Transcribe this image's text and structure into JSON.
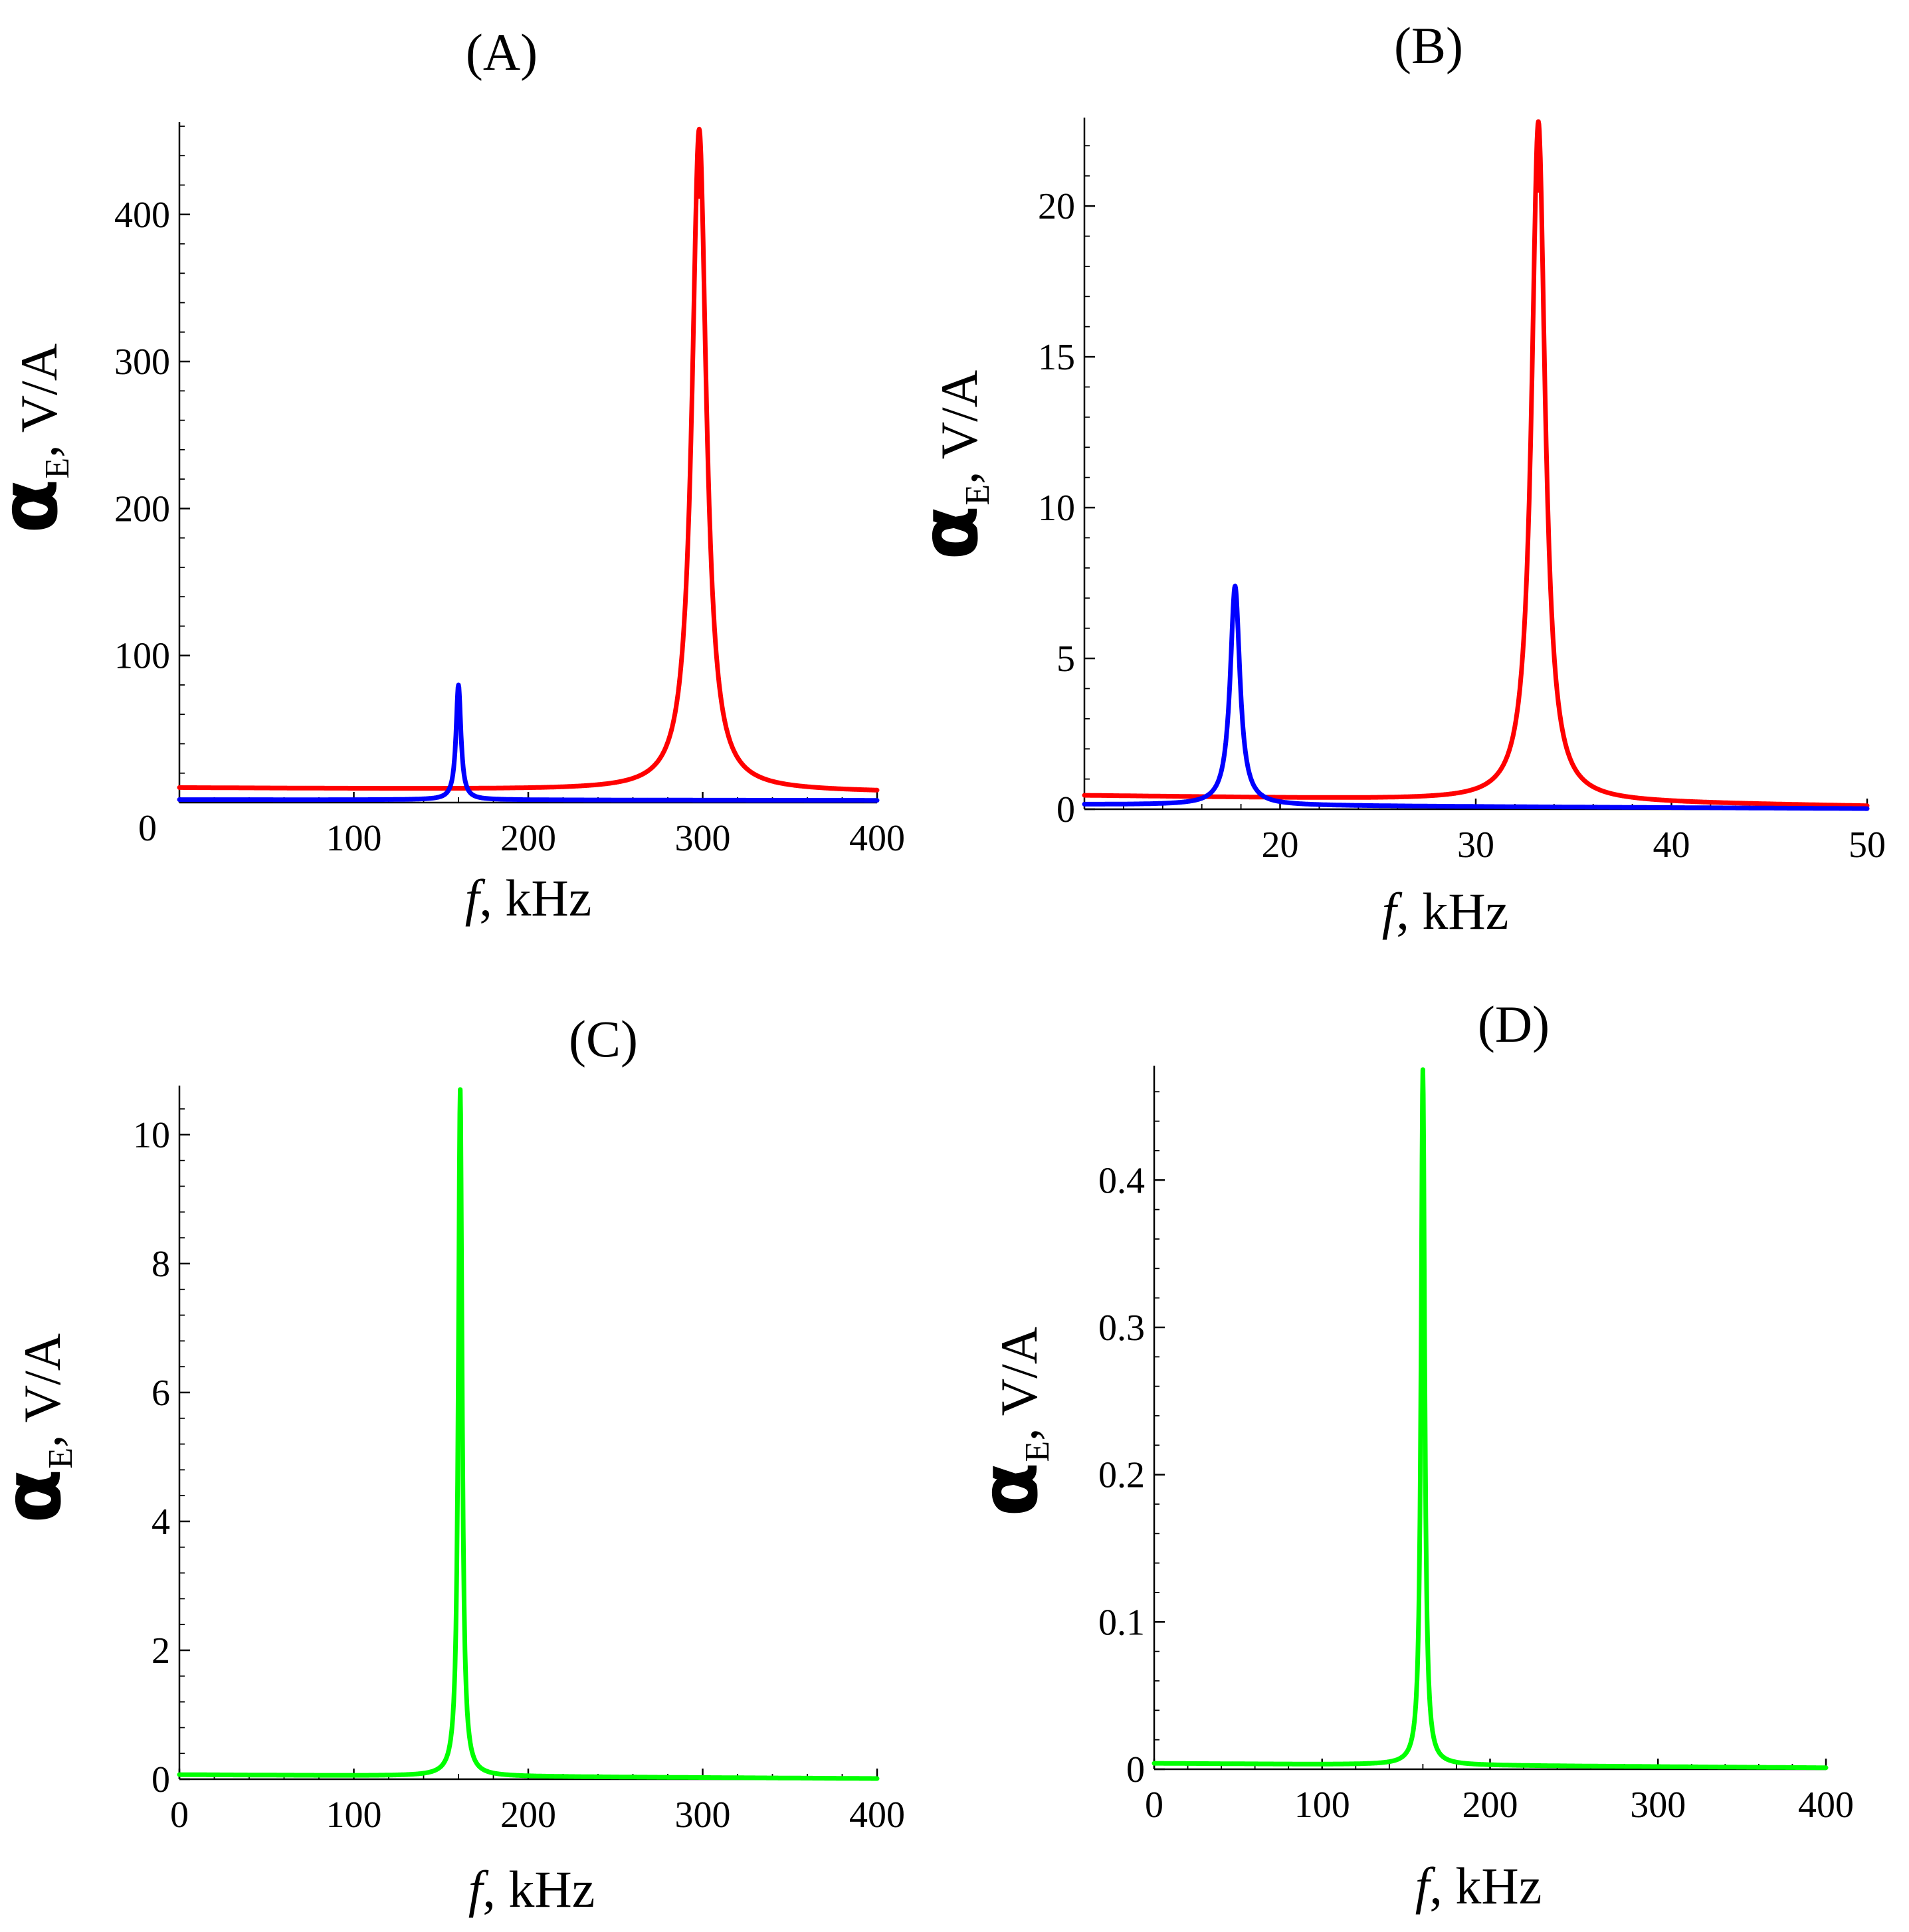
{
  "chart_data": [
    {
      "id": "A",
      "type": "line",
      "title": "(A)",
      "xlabel_var": "f",
      "xlabel_unit": ", kHz",
      "ylabel_sym": "α",
      "ylabel_sub": "E",
      "ylabel_unit": ", V/A",
      "xlim": [
        0,
        400
      ],
      "ylim": [
        0,
        460
      ],
      "xticks": [
        100,
        200,
        300,
        400
      ],
      "yticks": [
        100,
        200,
        300,
        400
      ],
      "origin_label": "0",
      "series": [
        {
          "name": "red",
          "color": "#ff0000",
          "f0": 298,
          "peak": 458,
          "gamma": 5,
          "base": 10,
          "base_end": 7
        },
        {
          "name": "blue",
          "color": "#0000ff",
          "f0": 160,
          "peak": 80,
          "gamma": 1.7,
          "base": 2,
          "base_end": 1.5
        }
      ]
    },
    {
      "id": "B",
      "type": "line",
      "title": "(B)",
      "xlabel_var": "f",
      "xlabel_unit": ", kHz",
      "ylabel_sym": "α",
      "ylabel_sub": "E",
      "ylabel_unit": ", V/A",
      "xlim": [
        10,
        50
      ],
      "ylim": [
        0,
        22.8
      ],
      "xticks": [
        20,
        30,
        40,
        50
      ],
      "yticks": [
        0,
        5,
        10,
        15,
        20
      ],
      "origin_label": "",
      "series": [
        {
          "name": "red",
          "color": "#ff0000",
          "f0": 33.2,
          "peak": 22.8,
          "gamma": 0.42,
          "base": 0.45,
          "base_end": 0.1
        },
        {
          "name": "blue",
          "color": "#0000ff",
          "f0": 17.7,
          "peak": 7.4,
          "gamma": 0.3,
          "base": 0.15,
          "base_end": 0.02
        }
      ]
    },
    {
      "id": "C",
      "type": "line",
      "title": "(C)",
      "xlabel_var": "f",
      "xlabel_unit": ", kHz",
      "ylabel_sym": "α",
      "ylabel_sub": "E",
      "ylabel_unit": ", V/A",
      "xlim": [
        0,
        400
      ],
      "ylim": [
        0,
        10.7
      ],
      "xticks": [
        0,
        100,
        200,
        300,
        400
      ],
      "yticks": [
        0,
        2,
        4,
        6,
        8,
        10
      ],
      "origin_label": "",
      "series": [
        {
          "name": "green",
          "color": "#00ff00",
          "f0": 161,
          "peak": 10.7,
          "gamma": 1.3,
          "base": 0.07,
          "base_end": 0.01
        }
      ]
    },
    {
      "id": "D",
      "type": "line",
      "title": "(D)",
      "xlabel_var": "f",
      "xlabel_unit": ", kHz",
      "ylabel_sym": "α",
      "ylabel_sub": "E",
      "ylabel_unit": ", V/A",
      "xlim": [
        0,
        400
      ],
      "ylim": [
        0,
        0.475
      ],
      "xticks": [
        0,
        100,
        200,
        300,
        400
      ],
      "yticks": [
        0,
        0.1,
        0.2,
        0.3,
        0.4
      ],
      "origin_label": "",
      "series": [
        {
          "name": "green",
          "color": "#00ff00",
          "f0": 160,
          "peak": 0.475,
          "gamma": 1.3,
          "base": 0.004,
          "base_end": 0.001
        }
      ]
    }
  ]
}
